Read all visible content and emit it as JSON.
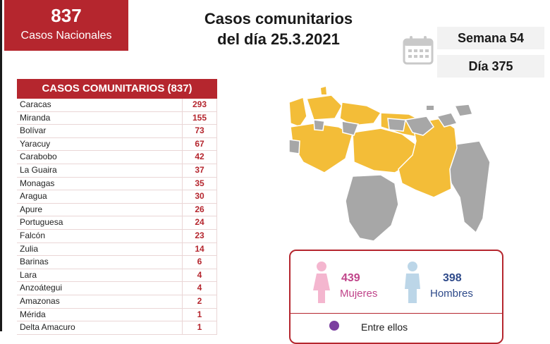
{
  "national": {
    "count": "837",
    "label": "Casos Nacionales"
  },
  "title": {
    "line1": "Casos comunitarios",
    "line2": "del día 25.3.2021"
  },
  "week": "Semana 54",
  "day": "Día 375",
  "table": {
    "header": "CASOS COMUNITARIOS (837)",
    "rows": [
      {
        "state": "Caracas",
        "count": "293"
      },
      {
        "state": "Miranda",
        "count": "155"
      },
      {
        "state": "Bolívar",
        "count": "73"
      },
      {
        "state": "Yaracuy",
        "count": "67"
      },
      {
        "state": "Carabobo",
        "count": "42"
      },
      {
        "state": "La Guaira",
        "count": "37"
      },
      {
        "state": "Monagas",
        "count": "35"
      },
      {
        "state": "Aragua",
        "count": "30"
      },
      {
        "state": "Apure",
        "count": "26"
      },
      {
        "state": "Portuguesa",
        "count": "24"
      },
      {
        "state": "Falcón",
        "count": "23"
      },
      {
        "state": "Zulia",
        "count": "14"
      },
      {
        "state": "Barinas",
        "count": "6"
      },
      {
        "state": "Lara",
        "count": "4"
      },
      {
        "state": "Anzoátegui",
        "count": "4"
      },
      {
        "state": "Amazonas",
        "count": "2"
      },
      {
        "state": "Mérida",
        "count": "1"
      },
      {
        "state": "Delta Amacuro",
        "count": "1"
      }
    ]
  },
  "gender": {
    "women_count": "439",
    "women_label": "Mujeres",
    "men_count": "398",
    "men_label": "Hombres",
    "among_label": "Entre ellos"
  },
  "colors": {
    "brand_red": "#b5262e",
    "map_yellow": "#f3bd38",
    "map_grey": "#a7a7a7",
    "women": "#c0448a",
    "men": "#2e4a8a"
  },
  "icons": [
    "calendar-icon",
    "woman-icon",
    "man-icon",
    "person-icon"
  ]
}
